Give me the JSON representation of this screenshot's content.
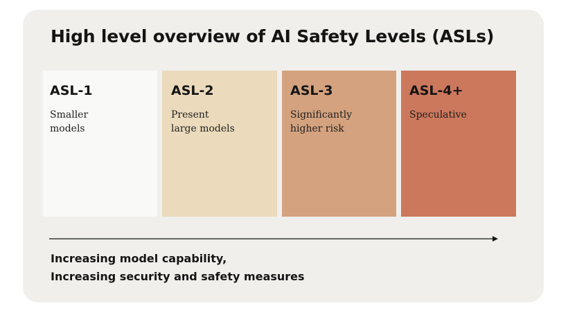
{
  "title": "High level overview of AI Safety Levels (ASLs)",
  "levels": [
    {
      "name": "ASL-1",
      "description": "Smaller\nmodels",
      "color": "#f9f9f8"
    },
    {
      "name": "ASL-2",
      "description": "Present\nlarge models",
      "color": "#ebdbbc"
    },
    {
      "name": "ASL-3",
      "description": "Significantly\nhigher risk",
      "color": "#d4a27f"
    },
    {
      "name": "ASL-4+",
      "description": "Speculative",
      "color": "#cc785c"
    }
  ],
  "caption": {
    "line1": "Increasing model capability,",
    "line2": "Increasing security and safety measures"
  },
  "colors": {
    "background": "#ffffff",
    "card": "#f0efec",
    "text": "#141413"
  }
}
